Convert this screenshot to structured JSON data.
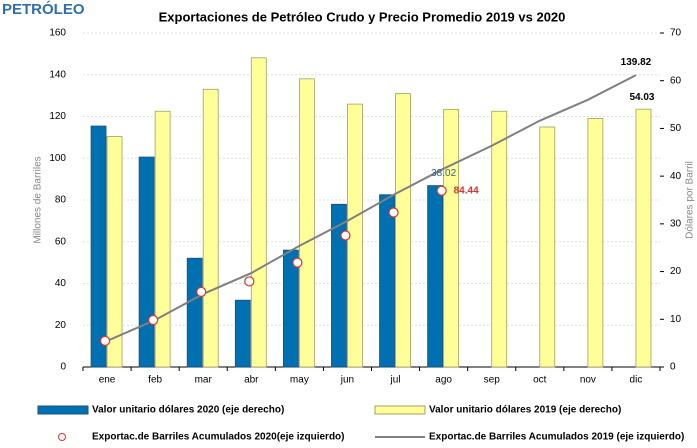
{
  "header": {
    "title": "PETRÓLEO"
  },
  "chart_data": {
    "type": "bar",
    "title": "Exportaciones de Petróleo Crudo y Precio Promedio 2019 vs 2020",
    "y_label": "Millones de Barriles",
    "y2_label": "Dólares por Barril",
    "categories": [
      "ene",
      "feb",
      "mar",
      "abr",
      "may",
      "jun",
      "jul",
      "ago",
      "sep",
      "oct",
      "nov",
      "dic"
    ],
    "ylim": [
      0,
      160
    ],
    "yticks": [
      0,
      20,
      40,
      60,
      80,
      100,
      120,
      140,
      160
    ],
    "y2lim": [
      0,
      70
    ],
    "y2ticks": [
      0,
      10,
      20,
      30,
      40,
      50,
      60,
      70
    ],
    "grid": true,
    "series": [
      {
        "name": "Valor unitario dólares 2020 (eje derecho)",
        "type": "bar",
        "axis": "y2",
        "color": "#0070b0",
        "values": [
          50.5,
          44.0,
          22.8,
          14.0,
          24.5,
          34.1,
          36.1,
          38.02,
          null,
          null,
          null,
          null
        ],
        "value_labels": [
          null,
          null,
          null,
          null,
          null,
          null,
          null,
          "38.02",
          null,
          null,
          null,
          null
        ],
        "label_color": "#2f5f8f"
      },
      {
        "name": "Valor unitario dólares 2019 (eje derecho)",
        "type": "bar",
        "axis": "y2",
        "color": "#ffff99",
        "values": [
          48.3,
          53.6,
          58.2,
          64.8,
          60.4,
          55.1,
          57.3,
          54.0,
          53.6,
          50.3,
          52.1,
          54.03
        ],
        "value_labels": [
          null,
          null,
          null,
          null,
          null,
          null,
          null,
          null,
          null,
          null,
          null,
          "54.03"
        ],
        "label_color": "#000000"
      },
      {
        "name": "Exportac.de Barriles Acumulados 2020(eje izquierdo)",
        "type": "scatter",
        "color": "#e03030",
        "values": [
          12.5,
          22.5,
          36,
          41,
          50,
          63,
          74,
          84.44,
          null,
          null,
          null,
          null
        ],
        "value_labels": [
          null,
          null,
          null,
          null,
          null,
          null,
          null,
          "84.44",
          null,
          null,
          null,
          null
        ],
        "label_color": "#e03030"
      },
      {
        "name": "Exportac.de Barriles Acumulados 2019 (eje izquierdo)",
        "type": "line",
        "color": "#808080",
        "values": [
          12.5,
          22.5,
          35,
          45,
          58,
          70,
          83,
          95,
          106,
          118,
          128,
          139.82
        ],
        "value_labels": [
          null,
          null,
          null,
          null,
          null,
          null,
          null,
          null,
          null,
          null,
          null,
          "139.82"
        ],
        "label_color": "#000000"
      }
    ]
  }
}
